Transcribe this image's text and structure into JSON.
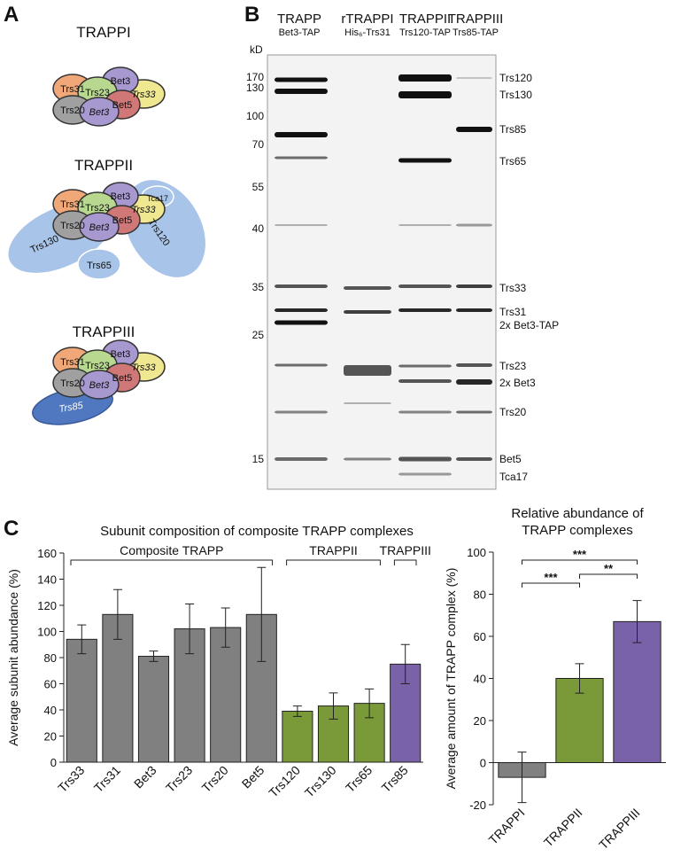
{
  "panels": [
    "A",
    "B",
    "C"
  ],
  "diagram": {
    "complexes": [
      {
        "name": "TRAPPI",
        "subunits": [
          "Trs31",
          "Trs23",
          "Bet3",
          "Trs33",
          "Trs20",
          "Bet3",
          "Bet5"
        ]
      },
      {
        "name": "TRAPPII",
        "subunits": [
          "Trs31",
          "Trs23",
          "Bet3",
          "Trs33",
          "Trs20",
          "Bet3",
          "Bet5"
        ],
        "extras": [
          "Trs130",
          "Trs120",
          "Trs65",
          "Tca17"
        ]
      },
      {
        "name": "TRAPPIII",
        "subunits": [
          "Trs31",
          "Trs23",
          "Bet3",
          "Trs33",
          "Trs20",
          "Bet3",
          "Bet5"
        ],
        "extras": [
          "Trs85"
        ]
      }
    ]
  },
  "gel": {
    "unit": "kD",
    "lanes": [
      {
        "name": "TRAPP",
        "sub": "Bet3-TAP",
        "color": "#000000"
      },
      {
        "name": "rTRAPPI",
        "sub": "His₆-Trs31",
        "color": "#888888"
      },
      {
        "name": "TRAPPII",
        "sub": "Trs120-TAP",
        "color": "#6f8f2a"
      },
      {
        "name": "TRAPPIII",
        "sub": "Trs85-TAP",
        "color": "#6a52a0"
      }
    ],
    "markers": [
      170,
      130,
      100,
      70,
      55,
      40,
      35,
      25,
      15
    ],
    "bands": [
      {
        "label": "Trs120",
        "color": "#6f8f2a"
      },
      {
        "label": "Trs130",
        "color": "#6f8f2a"
      },
      {
        "label": "Trs85",
        "color": "#6a52a0"
      },
      {
        "label": "Trs65",
        "color": "#6f8f2a"
      },
      {
        "label": "Trs33",
        "color": "#000000"
      },
      {
        "label": "Trs31",
        "color": "#000000"
      },
      {
        "label": "2x Bet3-TAP",
        "color": "#000000"
      },
      {
        "label": "Trs23",
        "color": "#000000"
      },
      {
        "label": "2x Bet3",
        "color": "#000000"
      },
      {
        "label": "Trs20",
        "color": "#000000"
      },
      {
        "label": "Bet5",
        "color": "#000000"
      },
      {
        "label": "Tca17",
        "color": "#6f8f2a"
      }
    ]
  },
  "chart_data": [
    {
      "type": "bar",
      "title": "Subunit composition of composite TRAPP complexes",
      "y_label": "Average subunit abundance (%)",
      "categories": [
        "Trs33",
        "Trs31",
        "Bet3",
        "Trs23",
        "Trs20",
        "Bet5",
        "Trs120",
        "Trs130",
        "Trs65",
        "Trs85"
      ],
      "values": [
        94,
        113,
        81,
        102,
        103,
        113,
        39,
        43,
        45,
        75
      ],
      "errors": [
        11,
        19,
        4,
        19,
        15,
        36,
        4,
        10,
        11,
        15
      ],
      "colors": [
        "#808080",
        "#808080",
        "#808080",
        "#808080",
        "#808080",
        "#808080",
        "#7a9a3a",
        "#7a9a3a",
        "#7a9a3a",
        "#7a62a8"
      ],
      "groups": [
        "Composite TRAPP",
        "TRAPPII",
        "TRAPPIII"
      ],
      "ylim": [
        0,
        160
      ],
      "yticks": [
        0,
        20,
        40,
        60,
        80,
        100,
        120,
        140,
        160
      ]
    },
    {
      "type": "bar",
      "title": [
        "Relative abundance of",
        "TRAPP complexes"
      ],
      "y_label": "Average amount of TRAPP complex (%)",
      "categories": [
        "TRAPPI",
        "TRAPPII",
        "TRAPPIII"
      ],
      "values": [
        -7,
        40,
        67
      ],
      "errors": [
        12,
        7,
        10
      ],
      "colors": [
        "#808080",
        "#7a9a3a",
        "#7a62a8"
      ],
      "significance": [
        "***",
        "***",
        "**"
      ],
      "ylim": [
        -20,
        100
      ],
      "yticks": [
        -20,
        0,
        20,
        40,
        60,
        80,
        100
      ]
    }
  ]
}
